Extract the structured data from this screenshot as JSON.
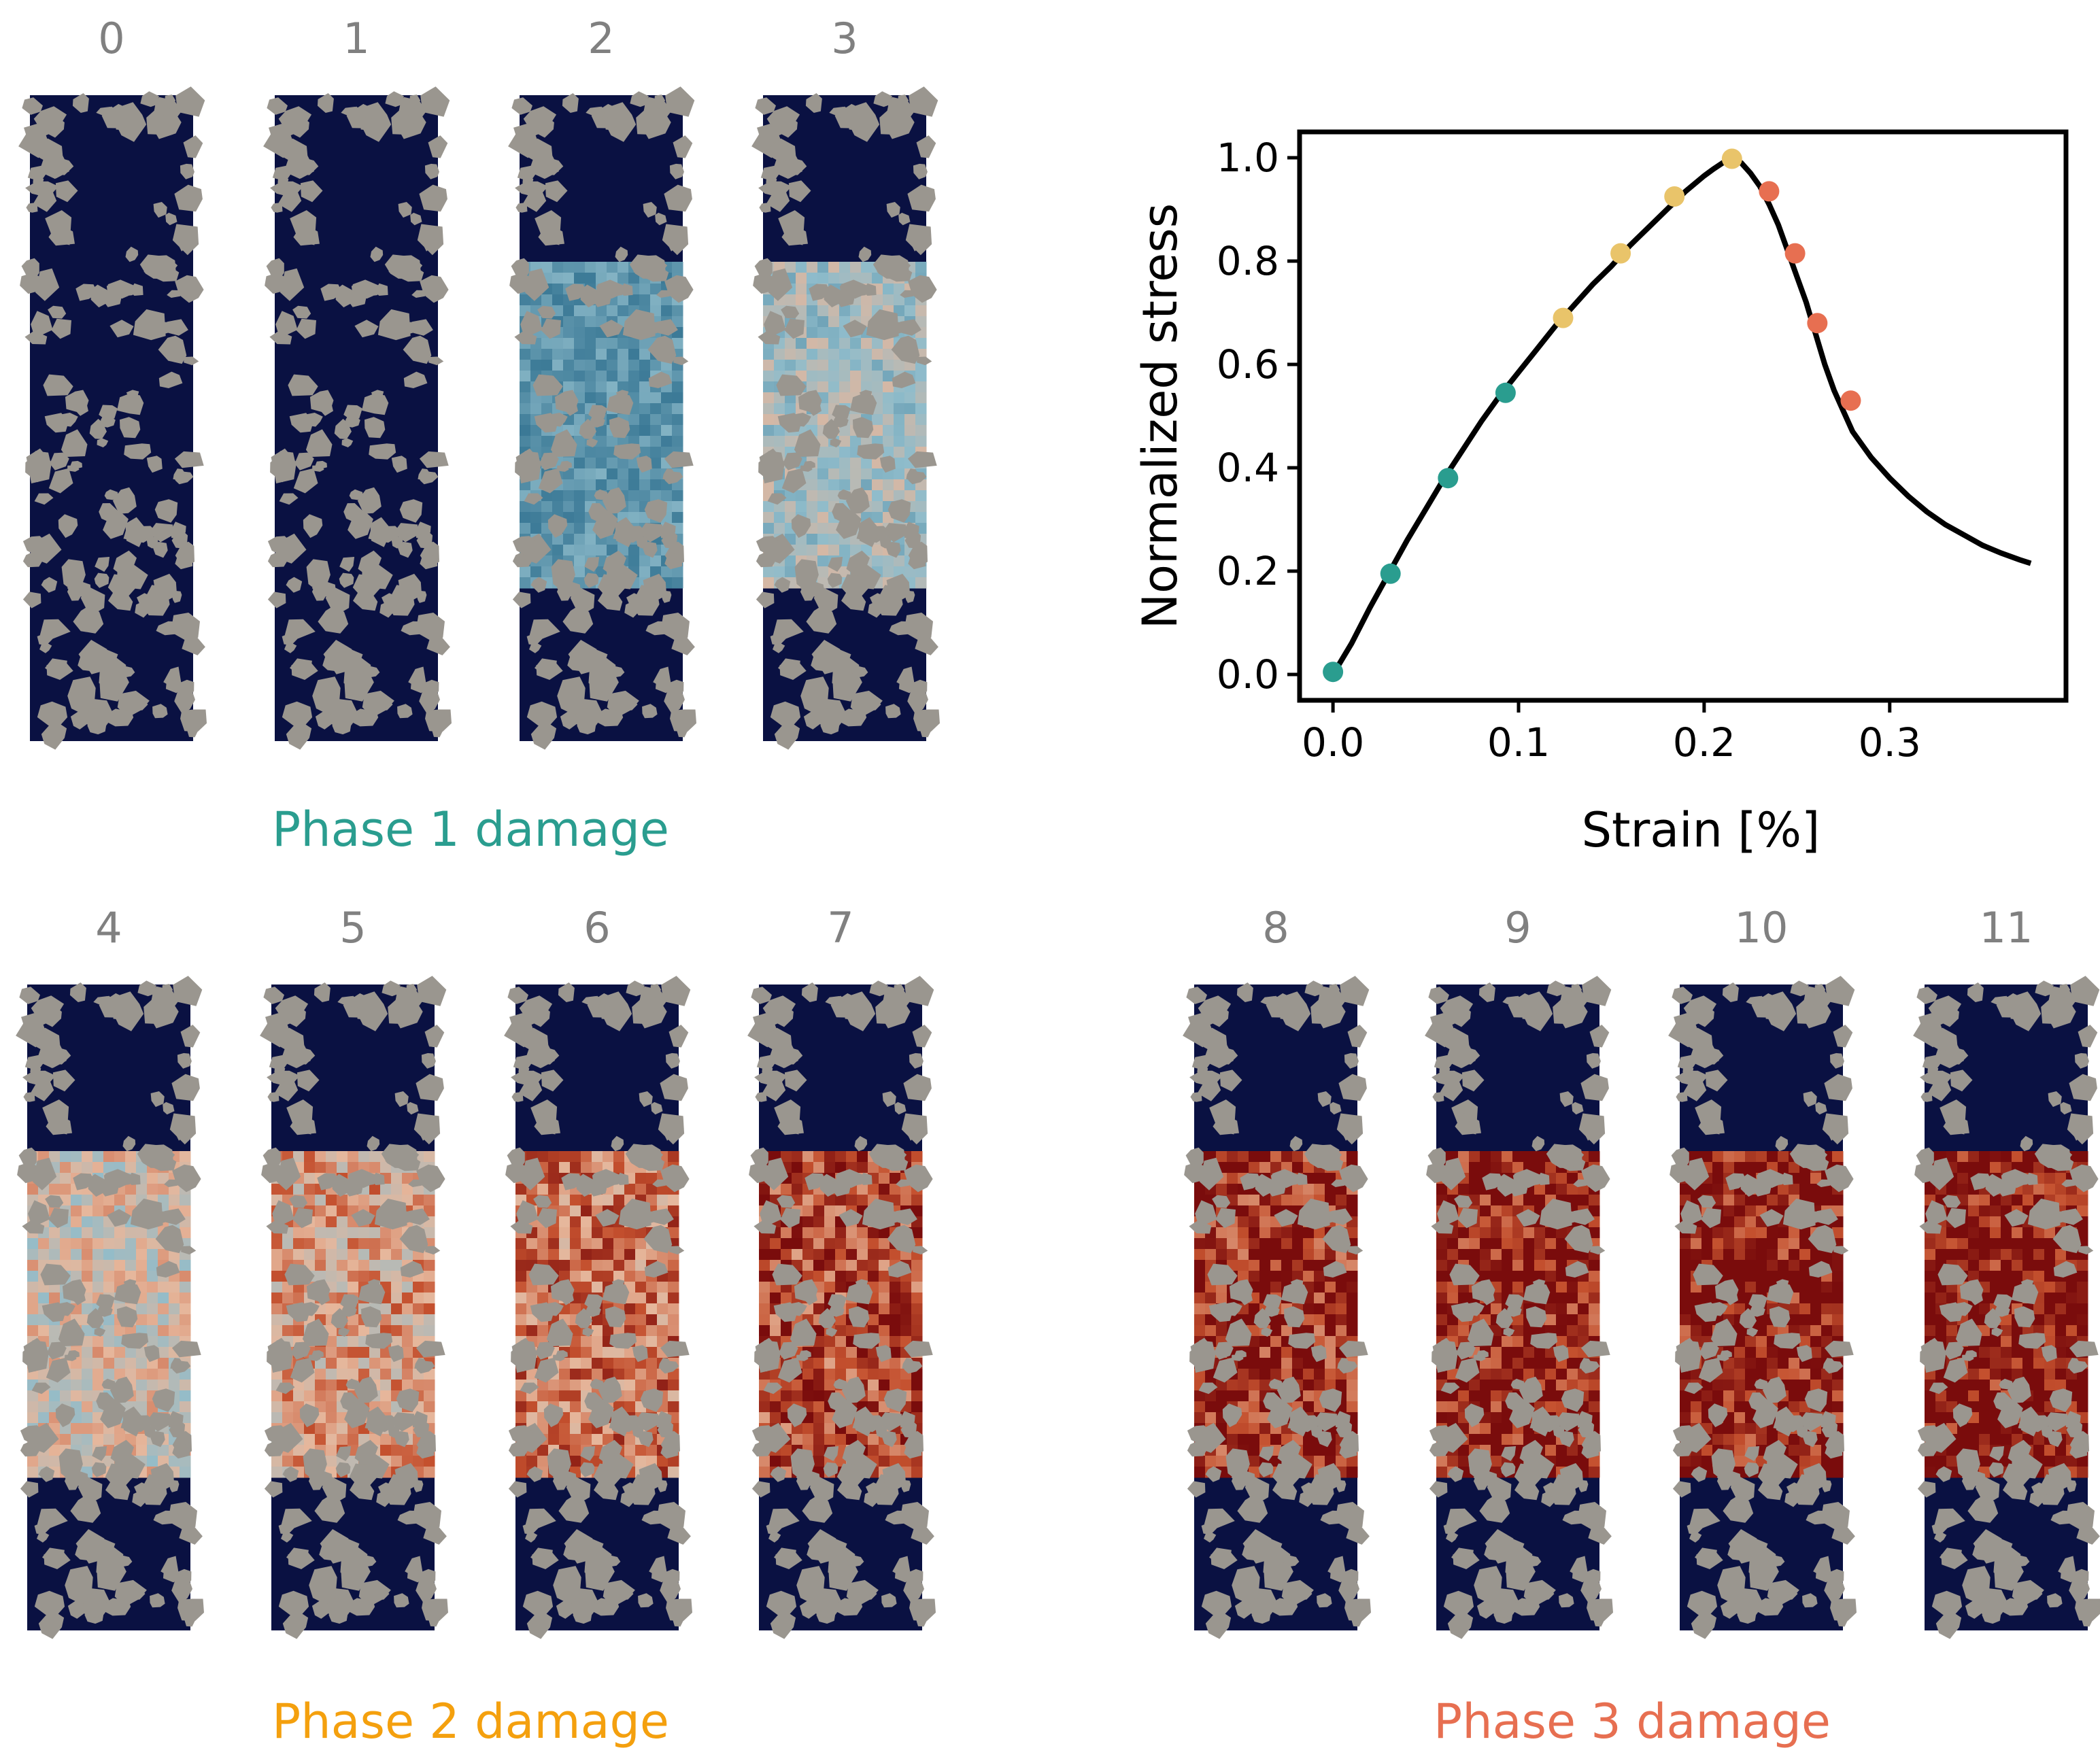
{
  "figure": {
    "phase_titles": [
      {
        "text": "Phase 1 damage",
        "color": "#2a9d8f"
      },
      {
        "text": "Phase 2 damage",
        "color": "#f4a00e"
      },
      {
        "text": "Phase 3 damage",
        "color": "#e76f51"
      }
    ],
    "snapshots": [
      {
        "label": "0",
        "damage": 0.0
      },
      {
        "label": "1",
        "damage": 0.02
      },
      {
        "label": "2",
        "damage": 0.3
      },
      {
        "label": "3",
        "damage": 0.45
      },
      {
        "label": "4",
        "damage": 0.55
      },
      {
        "label": "5",
        "damage": 0.65
      },
      {
        "label": "6",
        "damage": 0.75
      },
      {
        "label": "7",
        "damage": 0.85
      },
      {
        "label": "8",
        "damage": 0.92
      },
      {
        "label": "9",
        "damage": 0.96
      },
      {
        "label": "10",
        "damage": 0.98
      },
      {
        "label": "11",
        "damage": 1.0
      }
    ],
    "colors": {
      "matrix": "#0a1142",
      "aggregate": "#9a968f",
      "label_gray": "#808080",
      "phase1": "#2a9d8f",
      "phase2": "#e9c46a",
      "phase3": "#e76f51"
    }
  },
  "chart_data": {
    "type": "line",
    "xlabel": "Strain [%]",
    "ylabel": "Normalized stress",
    "xlim": [
      -0.018,
      0.395
    ],
    "ylim": [
      -0.05,
      1.05
    ],
    "xticks": [
      "0.0",
      "0.1",
      "0.2",
      "0.3"
    ],
    "xtick_values": [
      0.0,
      0.1,
      0.2,
      0.3
    ],
    "yticks": [
      "0.0",
      "0.2",
      "0.4",
      "0.6",
      "0.8",
      "1.0"
    ],
    "ytick_values": [
      0.0,
      0.2,
      0.4,
      0.6,
      0.8,
      1.0
    ],
    "curve": {
      "x": [
        0.0,
        0.01,
        0.02,
        0.03,
        0.04,
        0.05,
        0.06,
        0.07,
        0.08,
        0.09,
        0.1,
        0.11,
        0.12,
        0.13,
        0.14,
        0.15,
        0.16,
        0.17,
        0.18,
        0.19,
        0.2,
        0.205,
        0.21,
        0.215,
        0.22,
        0.225,
        0.23,
        0.235,
        0.24,
        0.245,
        0.25,
        0.255,
        0.26,
        0.265,
        0.27,
        0.275,
        0.28,
        0.29,
        0.3,
        0.31,
        0.32,
        0.33,
        0.34,
        0.35,
        0.36,
        0.37,
        0.376
      ],
      "y": [
        0.0,
        0.06,
        0.13,
        0.195,
        0.26,
        0.32,
        0.38,
        0.435,
        0.49,
        0.54,
        0.585,
        0.63,
        0.675,
        0.715,
        0.755,
        0.79,
        0.83,
        0.865,
        0.9,
        0.935,
        0.965,
        0.978,
        0.99,
        1.0,
        0.99,
        0.97,
        0.945,
        0.91,
        0.87,
        0.82,
        0.77,
        0.72,
        0.66,
        0.6,
        0.55,
        0.51,
        0.47,
        0.42,
        0.38,
        0.345,
        0.315,
        0.29,
        0.27,
        0.25,
        0.235,
        0.222,
        0.215
      ]
    },
    "series": [
      {
        "name": "Phase 1 damage",
        "color": "#2a9d8f",
        "x": [
          0.0,
          0.031,
          0.062,
          0.093
        ],
        "y": [
          0.005,
          0.195,
          0.38,
          0.545
        ]
      },
      {
        "name": "Phase 2 damage",
        "color": "#e9c46a",
        "x": [
          0.124,
          0.155,
          0.184,
          0.215
        ],
        "y": [
          0.69,
          0.815,
          0.925,
          0.998
        ]
      },
      {
        "name": "Phase 3 damage",
        "color": "#e76f51",
        "x": [
          0.235,
          0.249,
          0.261,
          0.279
        ],
        "y": [
          0.935,
          0.815,
          0.68,
          0.53
        ]
      }
    ]
  }
}
